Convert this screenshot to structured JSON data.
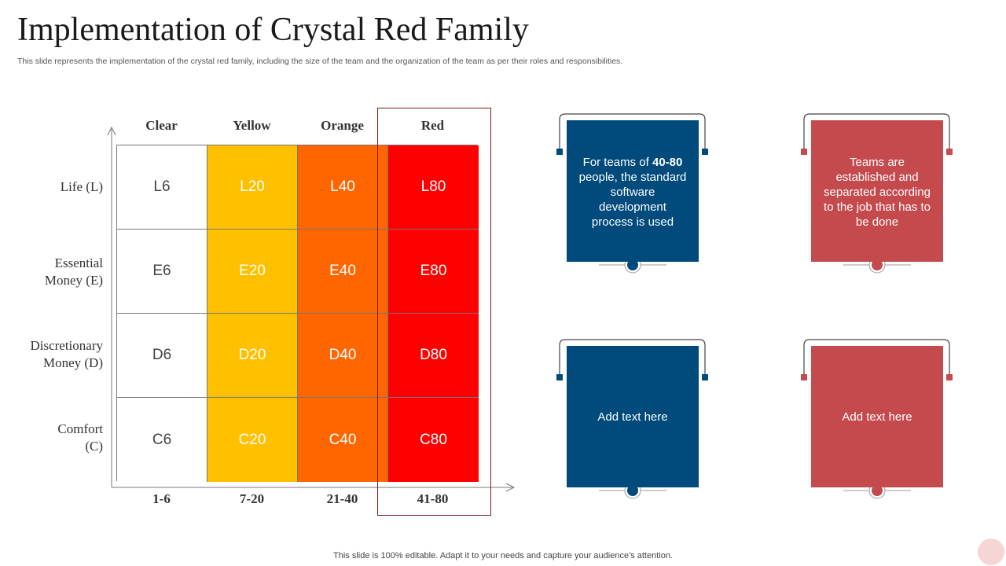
{
  "header": {
    "title": "Implementation of Crystal Red Family",
    "subtitle": "This slide represents the implementation of the crystal red family, including the size of the team and the organization of the team as per their roles and responsibilities."
  },
  "matrix": {
    "columns": [
      {
        "label": "Clear",
        "range": "1-6",
        "color": "#ffffff",
        "text_color": "#444444"
      },
      {
        "label": "Yellow",
        "range": "7-20",
        "color": "#ffc000",
        "text_color": "#ffffff"
      },
      {
        "label": "Orange",
        "range": "21-40",
        "color": "#ff6600",
        "text_color": "#ffffff"
      },
      {
        "label": "Red",
        "range": "41-80",
        "color": "#ff0000",
        "text_color": "#ffffff"
      }
    ],
    "rows": [
      {
        "label_line1": "Life (L)",
        "label_line2": "",
        "cells": [
          "L6",
          "L20",
          "L40",
          "L80"
        ]
      },
      {
        "label_line1": "Essential",
        "label_line2": "Money (E)",
        "cells": [
          "E6",
          "E20",
          "E40",
          "E80"
        ]
      },
      {
        "label_line1": "Discretionary",
        "label_line2": "Money (D)",
        "cells": [
          "D6",
          "D20",
          "D40",
          "D80"
        ]
      },
      {
        "label_line1": "Comfort",
        "label_line2": "(C)",
        "cells": [
          "C6",
          "C20",
          "C40",
          "C80"
        ]
      }
    ]
  },
  "cards": {
    "blue_color": "#004a7c",
    "red_color": "#c44a4e",
    "card1": {
      "text_before": "For teams of ",
      "text_bold": "40-80",
      "text_after": " people, the standard software development process is used"
    },
    "card2": {
      "text": "Teams are established and separated according to the job that has to be done"
    },
    "card3": {
      "text": "Add text here"
    },
    "card4": {
      "text": "Add text here"
    }
  },
  "footer": {
    "text": "This slide is 100% editable. Adapt it to your needs and capture your audience's attention."
  }
}
